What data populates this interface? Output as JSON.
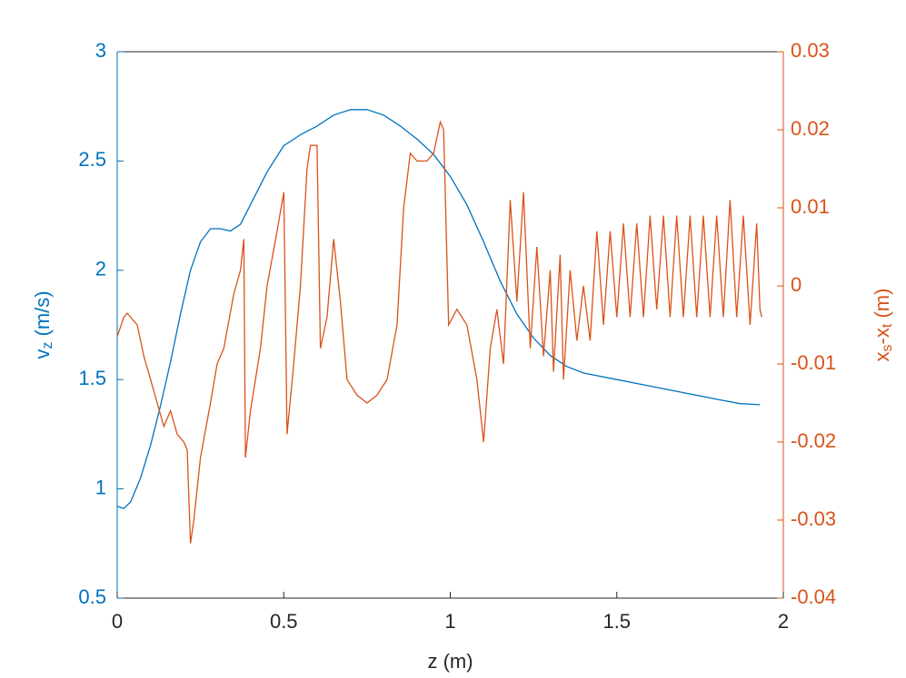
{
  "chart_data": {
    "type": "line",
    "xlabel": "z (m)",
    "ylabel": [
      "v",
      "z",
      " (m/s)"
    ],
    "y2label": [
      "x",
      "s",
      "-x",
      "t",
      " (m)"
    ],
    "xlim": [
      0,
      2
    ],
    "xticks": [
      0,
      0.5,
      1,
      1.5,
      2
    ],
    "ylim": [
      0.5,
      3
    ],
    "yticks": [
      0.5,
      1,
      1.5,
      2,
      2.5,
      3
    ],
    "y2lim": [
      -0.04,
      0.03
    ],
    "y2ticks": [
      -0.04,
      -0.03,
      -0.02,
      -0.01,
      0,
      0.01,
      0.02,
      0.03
    ],
    "series": [
      {
        "color": "#0072BD",
        "x": [
          0,
          0.02,
          0.04,
          0.07,
          0.1,
          0.13,
          0.16,
          0.19,
          0.22,
          0.25,
          0.28,
          0.31,
          0.34,
          0.37,
          0.4,
          0.45,
          0.5,
          0.55,
          0.6,
          0.65,
          0.7,
          0.75,
          0.8,
          0.85,
          0.9,
          0.95,
          1.0,
          1.05,
          1.1,
          1.15,
          1.2,
          1.25,
          1.3,
          1.35,
          1.4,
          1.5,
          1.6,
          1.7,
          1.8,
          1.87,
          1.93
        ],
        "values": [
          0.92,
          0.91,
          0.94,
          1.05,
          1.2,
          1.38,
          1.58,
          1.8,
          2.0,
          2.13,
          2.19,
          2.19,
          2.18,
          2.21,
          2.3,
          2.45,
          2.57,
          2.62,
          2.66,
          2.71,
          2.735,
          2.735,
          2.71,
          2.66,
          2.6,
          2.53,
          2.43,
          2.3,
          2.13,
          1.95,
          1.8,
          1.69,
          1.61,
          1.56,
          1.53,
          1.5,
          1.47,
          1.44,
          1.41,
          1.39,
          1.385
        ]
      },
      {
        "color": "#D95319",
        "axis": "y2",
        "x": [
          0,
          0.02,
          0.03,
          0.06,
          0.08,
          0.1,
          0.12,
          0.14,
          0.16,
          0.18,
          0.2,
          0.21,
          0.22,
          0.23,
          0.25,
          0.28,
          0.3,
          0.32,
          0.35,
          0.37,
          0.38,
          0.385,
          0.4,
          0.43,
          0.45,
          0.48,
          0.5,
          0.51,
          0.53,
          0.55,
          0.57,
          0.58,
          0.6,
          0.61,
          0.63,
          0.65,
          0.67,
          0.69,
          0.72,
          0.75,
          0.78,
          0.81,
          0.84,
          0.86,
          0.88,
          0.9,
          0.93,
          0.95,
          0.97,
          0.98,
          0.995,
          1.02,
          1.05,
          1.08,
          1.1,
          1.12,
          1.14,
          1.16,
          1.18,
          1.2,
          1.22,
          1.24,
          1.26,
          1.28,
          1.3,
          1.31,
          1.33,
          1.34,
          1.36,
          1.38,
          1.4,
          1.42,
          1.44,
          1.46,
          1.48,
          1.5,
          1.52,
          1.54,
          1.56,
          1.58,
          1.6,
          1.62,
          1.64,
          1.66,
          1.68,
          1.7,
          1.72,
          1.74,
          1.76,
          1.78,
          1.8,
          1.82,
          1.84,
          1.86,
          1.88,
          1.9,
          1.92,
          1.93,
          1.935
        ],
        "values": [
          -0.0065,
          -0.004,
          -0.0035,
          -0.005,
          -0.009,
          -0.012,
          -0.015,
          -0.018,
          -0.016,
          -0.019,
          -0.02,
          -0.021,
          -0.033,
          -0.03,
          -0.022,
          -0.015,
          -0.01,
          -0.008,
          -0.001,
          0.002,
          0.006,
          -0.022,
          -0.016,
          -0.008,
          0.0,
          0.007,
          0.012,
          -0.019,
          -0.01,
          0.0,
          0.015,
          0.018,
          0.018,
          -0.008,
          -0.004,
          0.006,
          -0.002,
          -0.012,
          -0.014,
          -0.015,
          -0.014,
          -0.012,
          -0.005,
          0.01,
          0.017,
          0.016,
          0.016,
          0.017,
          0.021,
          0.02,
          -0.005,
          -0.003,
          -0.005,
          -0.012,
          -0.02,
          -0.008,
          -0.003,
          -0.01,
          0.011,
          -0.002,
          0.012,
          -0.008,
          0.005,
          -0.009,
          0.002,
          -0.011,
          0.004,
          -0.012,
          0.002,
          -0.007,
          0.0,
          -0.007,
          0.007,
          -0.005,
          0.007,
          -0.004,
          0.008,
          -0.004,
          0.008,
          -0.004,
          0.009,
          -0.003,
          0.009,
          -0.004,
          0.009,
          -0.004,
          0.009,
          -0.004,
          0.009,
          -0.004,
          0.009,
          -0.004,
          0.011,
          -0.004,
          0.009,
          -0.005,
          0.008,
          -0.003,
          -0.004
        ]
      }
    ]
  }
}
